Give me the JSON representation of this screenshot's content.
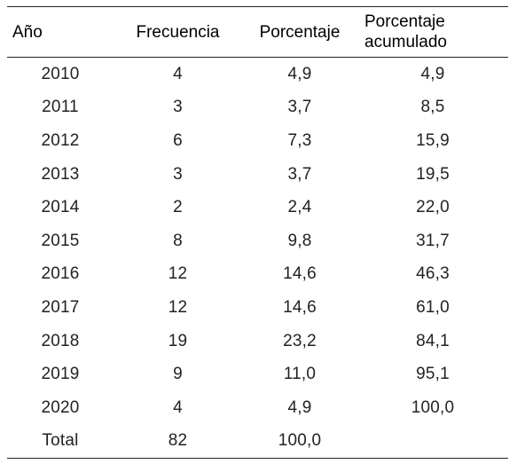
{
  "table": {
    "headers": {
      "year": "Año",
      "frequency": "Frecuencia",
      "percentage": "Porcentaje",
      "cumulative_line1": "Porcentaje",
      "cumulative_line2": "acumulado"
    },
    "rows": [
      {
        "year": "2010",
        "frequency": "4",
        "percentage": "4,9",
        "cumulative": "4,9"
      },
      {
        "year": "2011",
        "frequency": "3",
        "percentage": "3,7",
        "cumulative": "8,5"
      },
      {
        "year": "2012",
        "frequency": "6",
        "percentage": "7,3",
        "cumulative": "15,9"
      },
      {
        "year": "2013",
        "frequency": "3",
        "percentage": "3,7",
        "cumulative": "19,5"
      },
      {
        "year": "2014",
        "frequency": "2",
        "percentage": "2,4",
        "cumulative": "22,0"
      },
      {
        "year": "2015",
        "frequency": "8",
        "percentage": "9,8",
        "cumulative": "31,7"
      },
      {
        "year": "2016",
        "frequency": "12",
        "percentage": "14,6",
        "cumulative": "46,3"
      },
      {
        "year": "2017",
        "frequency": "12",
        "percentage": "14,6",
        "cumulative": "61,0"
      },
      {
        "year": "2018",
        "frequency": "19",
        "percentage": "23,2",
        "cumulative": "84,1"
      },
      {
        "year": "2019",
        "frequency": "9",
        "percentage": "11,0",
        "cumulative": "95,1"
      },
      {
        "year": "2020",
        "frequency": "4",
        "percentage": "4,9",
        "cumulative": "100,0"
      },
      {
        "year": "Total",
        "frequency": "82",
        "percentage": "100,0",
        "cumulative": ""
      }
    ]
  }
}
